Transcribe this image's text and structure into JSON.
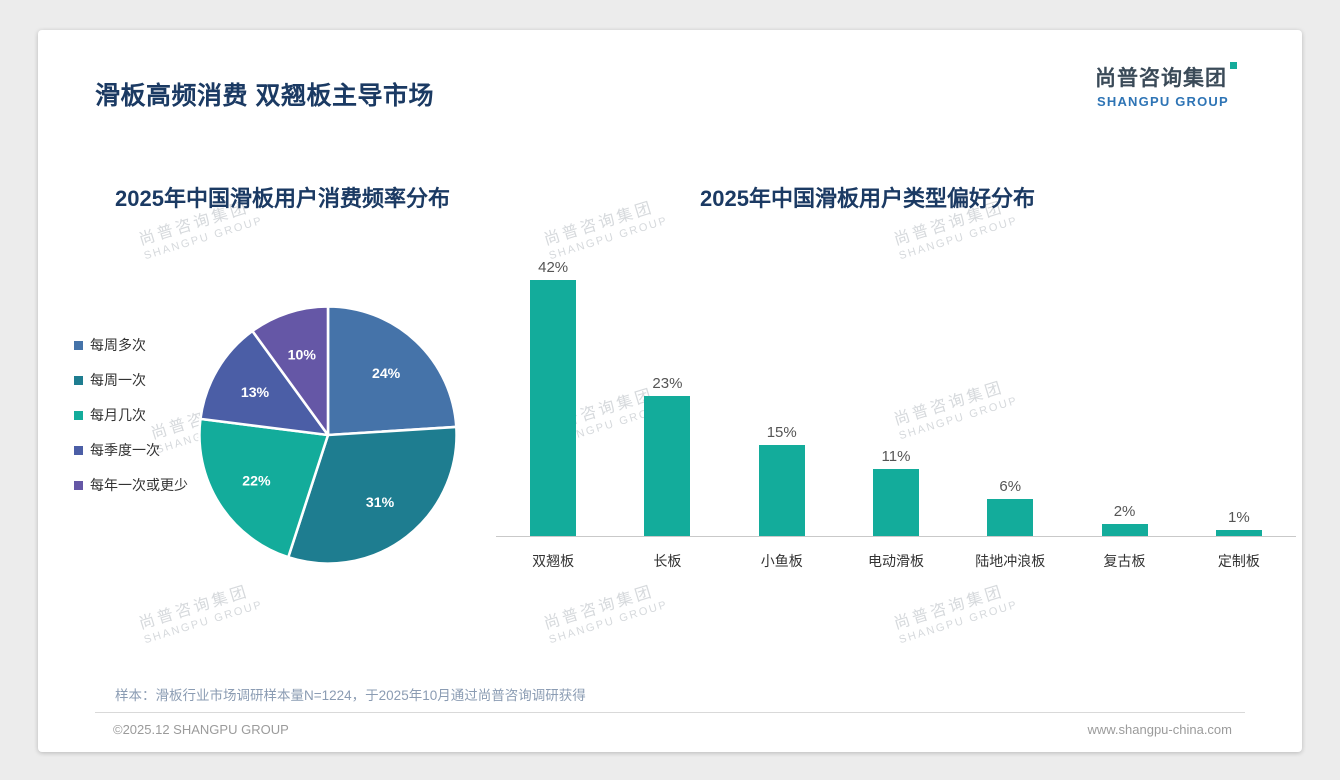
{
  "page": {
    "title": "滑板高频消费 双翘板主导市场",
    "sample_note": "样本：滑板行业市场调研样本量N=1224，于2025年10月通过尚普咨询调研获得",
    "footer_left": "©2025.12 SHANGPU GROUP",
    "footer_right": "www.shangpu-china.com"
  },
  "logo": {
    "cn": "尚普咨询集团",
    "en": "SHANGPU GROUP",
    "accent_color": "#14ab9a",
    "en_color": "#2e74b5"
  },
  "watermark": {
    "cn": "尚普咨询集团",
    "en": "SHANGPU GROUP"
  },
  "chart_data": [
    {
      "type": "pie",
      "title": "2025年中国滑板用户消费频率分布",
      "labels": [
        "每周多次",
        "每周一次",
        "每月几次",
        "每季度一次",
        "每年一次或更少"
      ],
      "values": [
        24,
        31,
        22,
        13,
        10
      ],
      "unit": "%",
      "colors": [
        "#4573a9",
        "#1e7d90",
        "#13ac9b",
        "#4b5ea6",
        "#6557a6"
      ],
      "legend_position": "left",
      "start_angle_deg": -90,
      "direction": "clockwise"
    },
    {
      "type": "bar",
      "title": "2025年中国滑板用户类型偏好分布",
      "categories": [
        "双翘板",
        "长板",
        "小鱼板",
        "电动滑板",
        "陆地冲浪板",
        "复古板",
        "定制板"
      ],
      "values": [
        42,
        23,
        15,
        11,
        6,
        2,
        1
      ],
      "unit": "%",
      "bar_color": "#13ac9b",
      "baseline": true,
      "ylim": [
        0,
        45
      ]
    }
  ]
}
